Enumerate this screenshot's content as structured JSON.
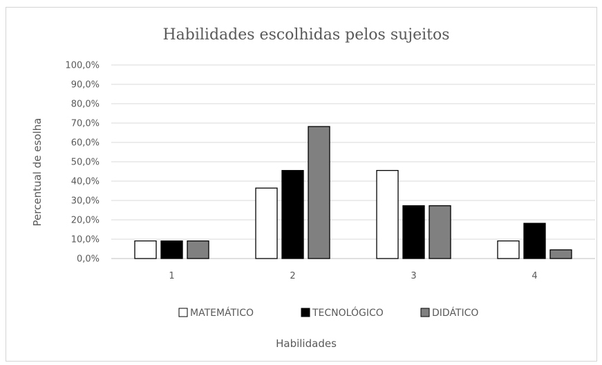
{
  "chart_data": {
    "type": "bar",
    "title": "Habilidades  escolhidas  pelos  sujeitos",
    "xlabel": "Habilidades",
    "ylabel": "Percentual de esolha",
    "categories": [
      "1",
      "2",
      "3",
      "4"
    ],
    "ylim": [
      0,
      100
    ],
    "yticks": [
      "0,0%",
      "10,0%",
      "20,0%",
      "30,0%",
      "40,0%",
      "50,0%",
      "60,0%",
      "70,0%",
      "80,0%",
      "90,0%",
      "100,0%"
    ],
    "grid": true,
    "legend_position": "bottom",
    "series": [
      {
        "name": "MATEMÁTICO",
        "color": "#ffffff",
        "values": [
          9.1,
          36.4,
          45.5,
          9.1
        ]
      },
      {
        "name": "TECNOLÓGICO",
        "color": "#000000",
        "values": [
          9.1,
          45.5,
          27.3,
          18.2
        ]
      },
      {
        "name": "DIDÁTICO",
        "color": "#808080",
        "values": [
          9.1,
          68.2,
          27.3,
          4.5
        ]
      }
    ]
  }
}
